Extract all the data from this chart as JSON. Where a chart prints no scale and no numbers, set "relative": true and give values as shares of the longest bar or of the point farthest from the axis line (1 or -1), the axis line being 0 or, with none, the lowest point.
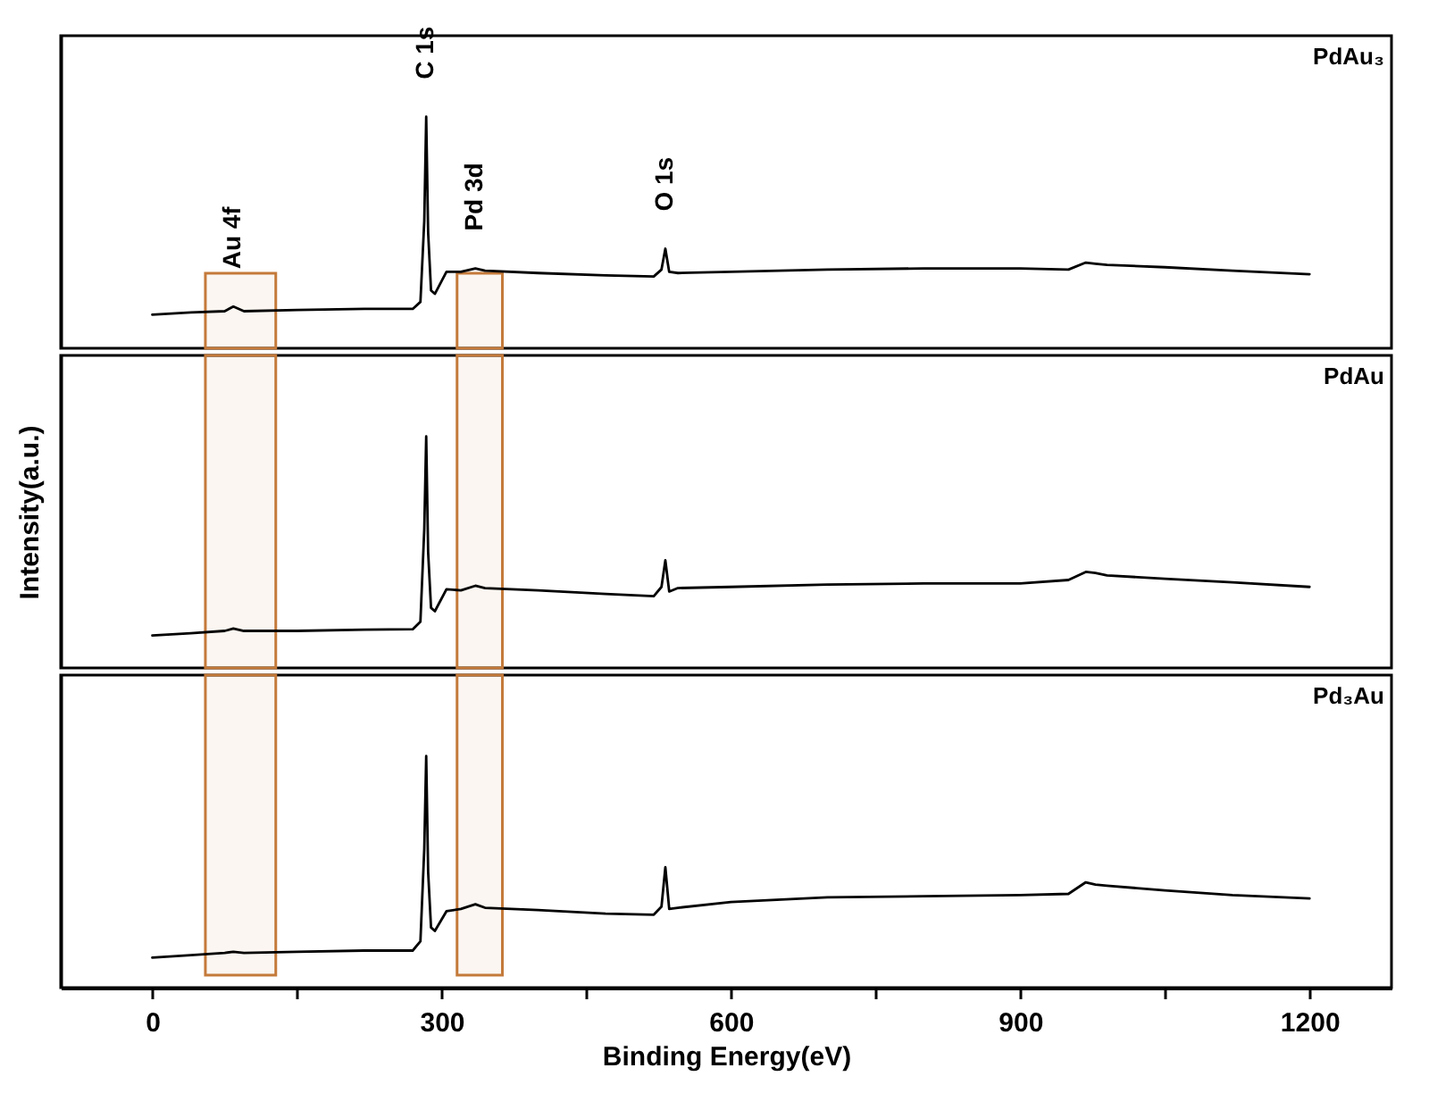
{
  "chart_data": [
    {
      "type": "line",
      "relative": true,
      "tick_labels": false,
      "xlim": [
        -95,
        1285
      ],
      "annotations": [
        {
          "text": "Au 4f",
          "x": 84,
          "y": 0.18
        },
        {
          "text": "C 1s",
          "x": 284,
          "y": 1.0
        },
        {
          "text": "Pd 3d",
          "x": 335,
          "y": 0.345
        },
        {
          "text": "O 1s",
          "x": 532,
          "y": 0.43
        }
      ],
      "bands": [
        {
          "axis": "x",
          "from": 55,
          "to": 128,
          "color": "#c47a3a"
        },
        {
          "axis": "x",
          "from": 316,
          "to": 363,
          "color": "#c47a3a"
        }
      ],
      "x": [
        0,
        40,
        75,
        84,
        95,
        150,
        220,
        270,
        278,
        282,
        284,
        286,
        289,
        293,
        305,
        320,
        335,
        345,
        400,
        470,
        520,
        528,
        532,
        536,
        545,
        600,
        700,
        800,
        900,
        950,
        968,
        978,
        990,
        1050,
        1120,
        1200
      ],
      "series": [
        {
          "name": "PdAu₃",
          "color": "#000000",
          "values": [
            0.145,
            0.155,
            0.16,
            0.18,
            0.16,
            0.165,
            0.17,
            0.17,
            0.2,
            0.55,
            1.0,
            0.5,
            0.25,
            0.235,
            0.33,
            0.33,
            0.345,
            0.335,
            0.325,
            0.315,
            0.31,
            0.34,
            0.43,
            0.33,
            0.325,
            0.33,
            0.34,
            0.345,
            0.345,
            0.34,
            0.37,
            0.365,
            0.36,
            0.35,
            0.335,
            0.32
          ]
        }
      ]
    },
    {
      "type": "line",
      "relative": true,
      "tick_labels": false,
      "xlim": [
        -95,
        1285
      ],
      "ylabel": "Intensity(a.u.)",
      "bands": [
        {
          "axis": "x",
          "from": 55,
          "to": 128,
          "color": "#c47a3a"
        },
        {
          "axis": "x",
          "from": 316,
          "to": 363,
          "color": "#c47a3a"
        }
      ],
      "x": [
        0,
        40,
        75,
        84,
        95,
        150,
        220,
        270,
        278,
        282,
        284,
        286,
        289,
        293,
        305,
        320,
        335,
        345,
        400,
        470,
        520,
        528,
        532,
        536,
        545,
        600,
        700,
        800,
        900,
        950,
        968,
        978,
        990,
        1050,
        1120,
        1200
      ],
      "series": [
        {
          "name": "PdAu",
          "color": "#000000",
          "values": [
            0.14,
            0.15,
            0.16,
            0.17,
            0.16,
            0.16,
            0.165,
            0.167,
            0.2,
            0.6,
            1.0,
            0.5,
            0.26,
            0.245,
            0.34,
            0.335,
            0.355,
            0.345,
            0.335,
            0.32,
            0.31,
            0.35,
            0.465,
            0.33,
            0.345,
            0.35,
            0.36,
            0.365,
            0.365,
            0.38,
            0.415,
            0.41,
            0.4,
            0.385,
            0.37,
            0.35
          ]
        }
      ]
    },
    {
      "type": "line",
      "relative": true,
      "xlim": [
        -95,
        1285
      ],
      "xticks": [
        0,
        {
          "value": 150,
          "label": null
        },
        300,
        {
          "value": 450,
          "label": null
        },
        600,
        {
          "value": 750,
          "label": null
        },
        900,
        {
          "value": 1050,
          "label": null
        },
        1200
      ],
      "xlabel": "Binding Energy(eV)",
      "bands": [
        {
          "axis": "x",
          "from": 55,
          "to": 128,
          "color": "#c47a3a"
        },
        {
          "axis": "x",
          "from": 316,
          "to": 363,
          "color": "#c47a3a"
        }
      ],
      "x": [
        0,
        40,
        75,
        84,
        95,
        150,
        220,
        270,
        278,
        282,
        284,
        286,
        289,
        293,
        305,
        320,
        335,
        345,
        400,
        470,
        520,
        528,
        532,
        536,
        545,
        600,
        700,
        800,
        900,
        950,
        968,
        978,
        990,
        1050,
        1120,
        1200
      ],
      "series": [
        {
          "name": "Pd₃Au",
          "color": "#000000",
          "values": [
            0.13,
            0.14,
            0.15,
            0.155,
            0.15,
            0.155,
            0.16,
            0.16,
            0.2,
            0.6,
            1.0,
            0.5,
            0.26,
            0.245,
            0.33,
            0.34,
            0.36,
            0.345,
            0.335,
            0.32,
            0.315,
            0.35,
            0.52,
            0.34,
            0.345,
            0.37,
            0.39,
            0.395,
            0.4,
            0.405,
            0.455,
            0.445,
            0.44,
            0.42,
            0.4,
            0.385
          ]
        }
      ]
    }
  ]
}
